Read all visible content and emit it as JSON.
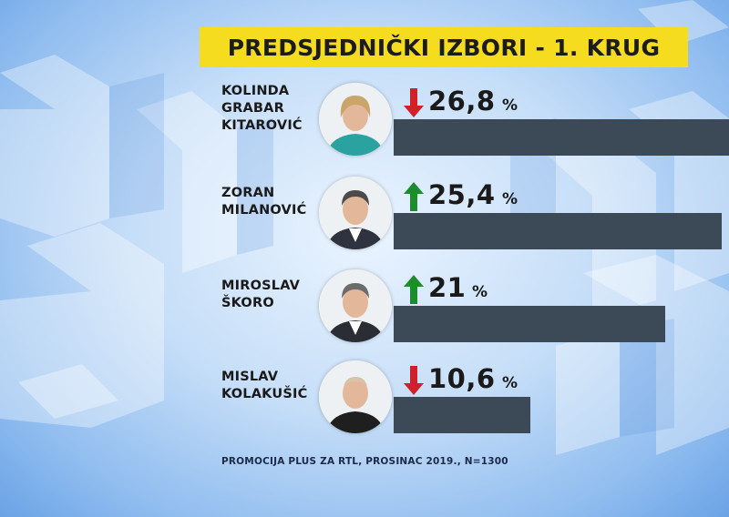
{
  "chart_data": {
    "type": "bar",
    "title": "PREDSJEDNIČKI IZBORI - 1. KRUG",
    "unit": "%",
    "categories": [
      "KOLINDA GRABAR KITAROVIĆ",
      "ZORAN MILANOVIĆ",
      "MIROSLAV ŠKORO",
      "MISLAV KOLAKUŠIĆ"
    ],
    "values": [
      26.8,
      25.4,
      21,
      10.6
    ],
    "value_labels": [
      "26,8",
      "25,4",
      "21",
      "10,6"
    ],
    "trend": [
      "down",
      "up",
      "up",
      "down"
    ],
    "name_lines": [
      [
        "KOLINDA",
        "GRABAR",
        "KITAROVIĆ"
      ],
      [
        "ZORAN",
        "MILANOVIĆ"
      ],
      [
        "MIROSLAV",
        "ŠKORO"
      ],
      [
        "MISLAV",
        "KOLAKUŠIĆ"
      ]
    ],
    "bar_color": "#3c4a57",
    "up_color": "#1e8c2e",
    "down_color": "#d0202a",
    "source": "PROMOCIJA PLUS ZA RTL, PROSINAC 2019., N=1300"
  },
  "colors": {
    "title_background": "#f5dc1e",
    "background": "#a9cdf5"
  }
}
